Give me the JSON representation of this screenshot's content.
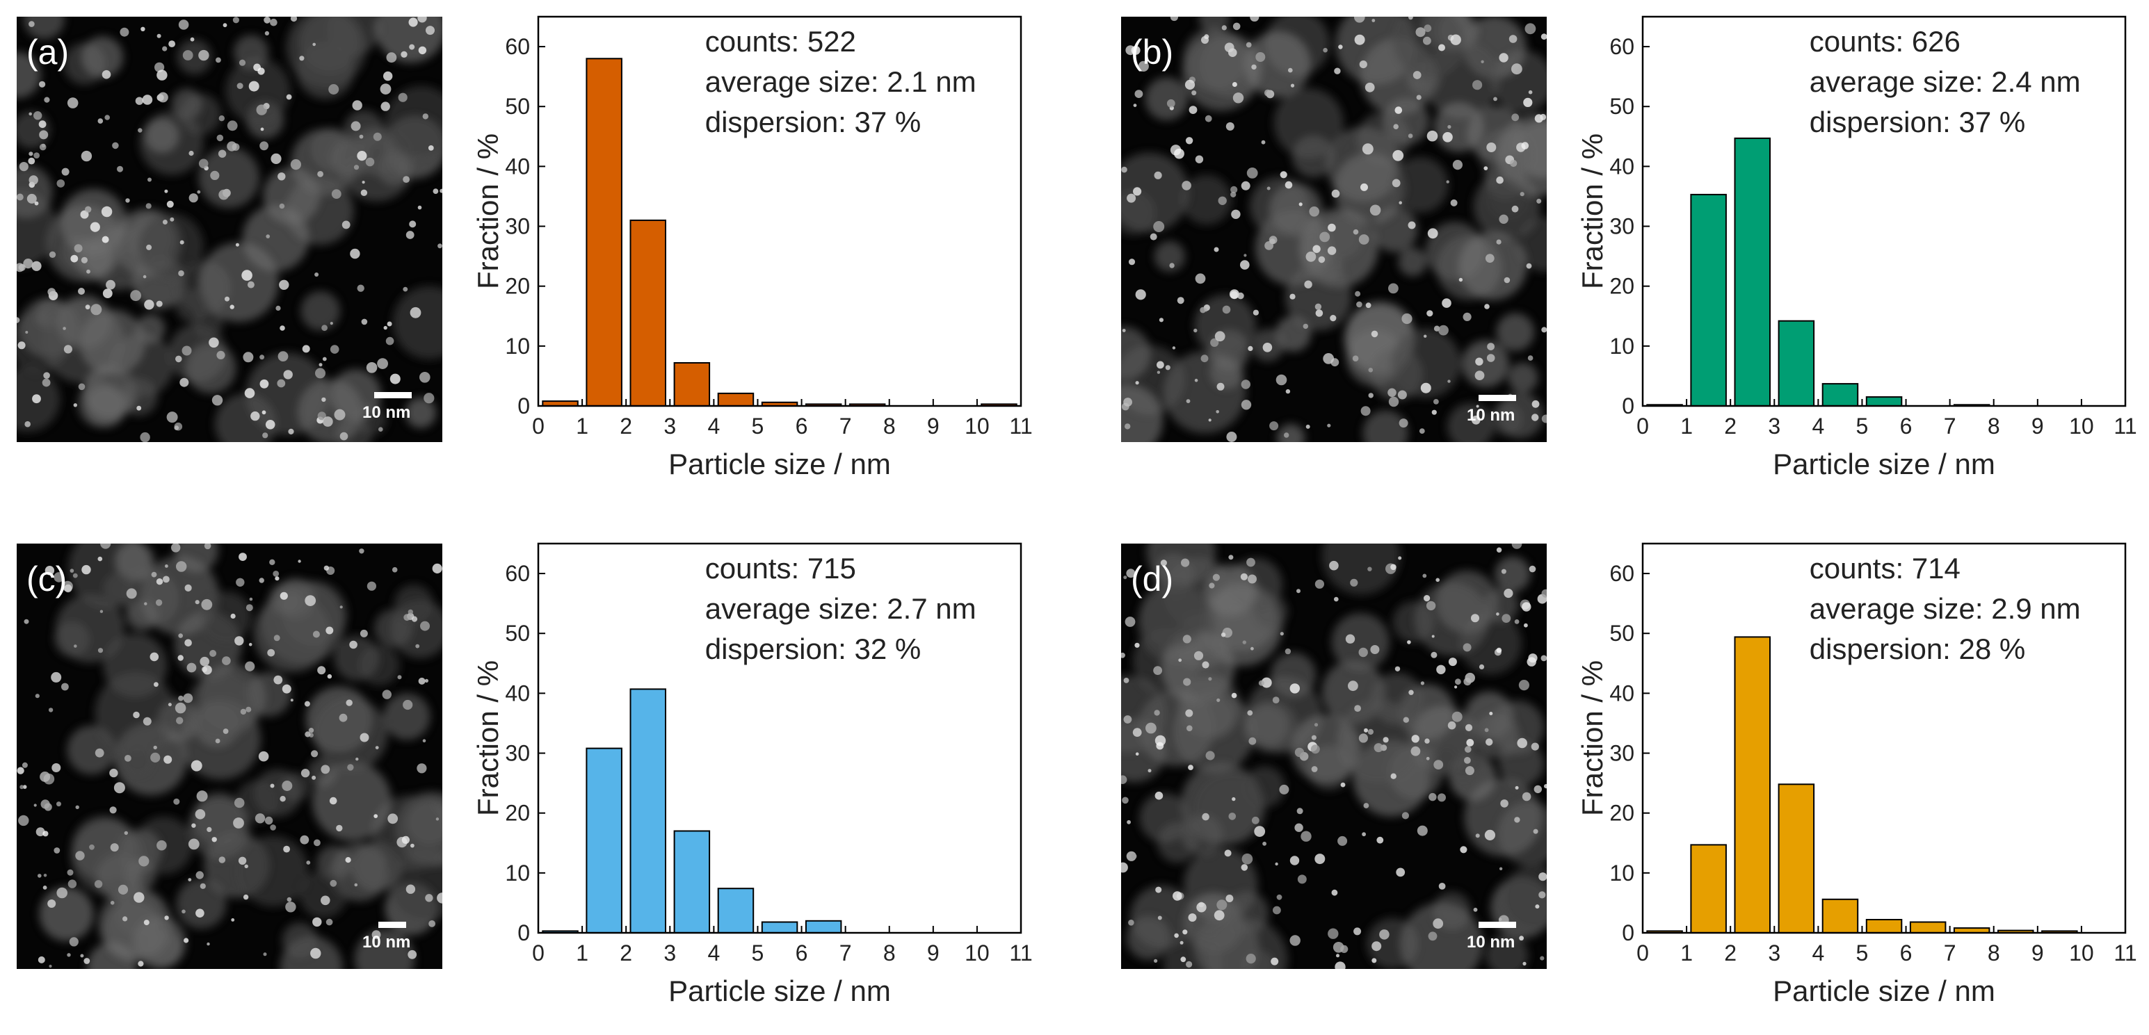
{
  "panels": [
    {
      "label": "(a)",
      "scale_bar": "10 nm",
      "chart_data": {
        "type": "bar",
        "xlabel": "Particle size / nm",
        "ylabel": "Fraction / %",
        "xlim": [
          0,
          11
        ],
        "ylim": [
          0,
          65
        ],
        "xticks": [
          "0",
          "1",
          "2",
          "3",
          "4",
          "5",
          "6",
          "7",
          "8",
          "9",
          "10",
          "11"
        ],
        "yticks": [
          "0",
          "10",
          "20",
          "30",
          "40",
          "50",
          "60"
        ],
        "bin_centers": [
          0.5,
          1.5,
          2.5,
          3.5,
          4.5,
          5.5,
          6.5,
          7.5,
          8.5,
          9.5,
          10.5
        ],
        "values": [
          0.8,
          58,
          31,
          7.2,
          2.1,
          0.6,
          0.3,
          0.3,
          0,
          0,
          0.3
        ],
        "color": "#D55E00",
        "stats": [
          "counts: 522",
          "average size: 2.1 nm",
          "dispersion: 37 %"
        ]
      }
    },
    {
      "label": "(b)",
      "scale_bar": "10 nm",
      "chart_data": {
        "type": "bar",
        "xlabel": "Particle size / nm",
        "ylabel": "Fraction / %",
        "xlim": [
          0,
          11
        ],
        "ylim": [
          0,
          65
        ],
        "xticks": [
          "0",
          "1",
          "2",
          "3",
          "4",
          "5",
          "6",
          "7",
          "8",
          "9",
          "10",
          "11"
        ],
        "yticks": [
          "0",
          "10",
          "20",
          "30",
          "40",
          "50",
          "60"
        ],
        "bin_centers": [
          0.5,
          1.5,
          2.5,
          3.5,
          4.5,
          5.5,
          6.5,
          7.5,
          8.5,
          9.5,
          10.5
        ],
        "values": [
          0.2,
          35.3,
          44.7,
          14.2,
          3.7,
          1.5,
          0,
          0.2,
          0,
          0,
          0
        ],
        "color": "#009E73",
        "stats": [
          "counts: 626",
          "average size: 2.4 nm",
          "dispersion: 37 %"
        ]
      }
    },
    {
      "label": "(c)",
      "scale_bar": "10 nm",
      "chart_data": {
        "type": "bar",
        "xlabel": "Particle size / nm",
        "ylabel": "Fraction / %",
        "xlim": [
          0,
          11
        ],
        "ylim": [
          0,
          65
        ],
        "xticks": [
          "0",
          "1",
          "2",
          "3",
          "4",
          "5",
          "6",
          "7",
          "8",
          "9",
          "10",
          "11"
        ],
        "yticks": [
          "0",
          "10",
          "20",
          "30",
          "40",
          "50",
          "60"
        ],
        "bin_centers": [
          0.5,
          1.5,
          2.5,
          3.5,
          4.5,
          5.5,
          6.5,
          7.5,
          8.5,
          9.5,
          10.5
        ],
        "values": [
          0.3,
          30.8,
          40.7,
          17,
          7.4,
          1.8,
          2,
          0,
          0,
          0,
          0
        ],
        "color": "#56B4E9",
        "stats": [
          "counts: 715",
          "average size: 2.7 nm",
          "dispersion: 32 %"
        ]
      }
    },
    {
      "label": "(d)",
      "scale_bar": "10 nm",
      "chart_data": {
        "type": "bar",
        "xlabel": "Particle size / nm",
        "ylabel": "Fraction / %",
        "xlim": [
          0,
          11
        ],
        "ylim": [
          0,
          65
        ],
        "xticks": [
          "0",
          "1",
          "2",
          "3",
          "4",
          "5",
          "6",
          "7",
          "8",
          "9",
          "10",
          "11"
        ],
        "yticks": [
          "0",
          "10",
          "20",
          "30",
          "40",
          "50",
          "60"
        ],
        "bin_centers": [
          0.5,
          1.5,
          2.5,
          3.5,
          4.5,
          5.5,
          6.5,
          7.5,
          8.5,
          9.5,
          10.5
        ],
        "values": [
          0.3,
          14.7,
          49.4,
          24.8,
          5.6,
          2.2,
          1.8,
          0.8,
          0.4,
          0.3,
          0
        ],
        "color": "#E69F00",
        "stats": [
          "counts: 714",
          "average size: 2.9 nm",
          "dispersion: 28 %"
        ]
      }
    }
  ]
}
